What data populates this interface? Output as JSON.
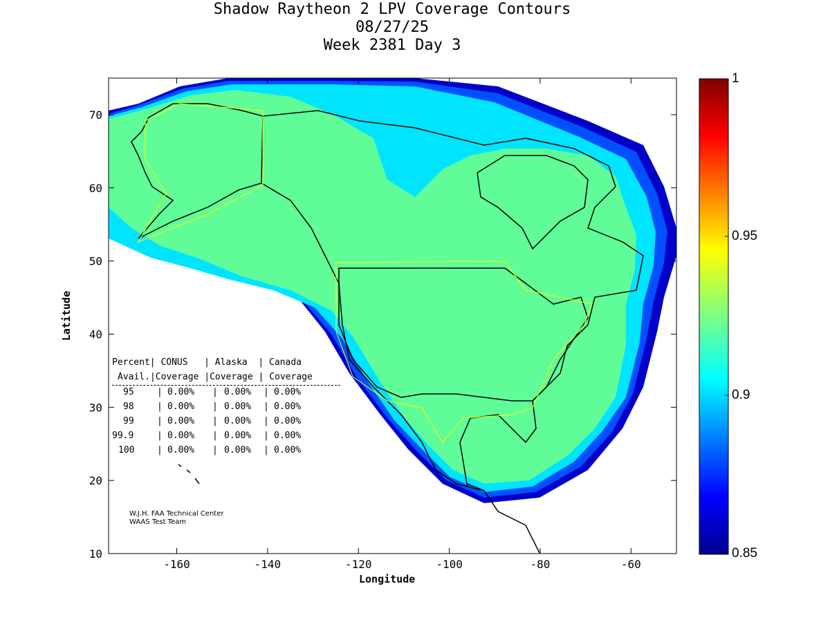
{
  "title": {
    "line1": "Shadow Raytheon 2 LPV Coverage Contours",
    "line2": "08/27/25",
    "line3": "Week 2381 Day 3"
  },
  "axes": {
    "xlabel": "Longitude",
    "ylabel": "Latitude",
    "x_ticks": [
      -160,
      -140,
      -120,
      -100,
      -80,
      -60
    ],
    "y_ticks": [
      10,
      20,
      30,
      40,
      50,
      60,
      70
    ],
    "x_range": [
      -175,
      -50
    ],
    "y_range": [
      10,
      75
    ]
  },
  "colorbar": {
    "min_label": "0.85",
    "max_label": "1",
    "ticks": [
      "0.95",
      "0.9"
    ],
    "colors": [
      "#7f0000",
      "#ff0000",
      "#ffff00",
      "#00ffff",
      "#0000ff",
      "#00008f"
    ]
  },
  "stats_table": {
    "header1": [
      "Percent",
      "CONUS",
      "Alaska",
      "Canada"
    ],
    "header2": [
      "Avail.",
      "Coverage",
      "Coverage",
      "Coverage"
    ],
    "rows": [
      {
        "pct": "95",
        "conus": "0.00%",
        "alaska": "0.00%",
        "canada": "0.00%"
      },
      {
        "pct": "98",
        "conus": "0.00%",
        "alaska": "0.00%",
        "canada": "0.00%"
      },
      {
        "pct": "99",
        "conus": "0.00%",
        "alaska": "0.00%",
        "canada": "0.00%"
      },
      {
        "pct": "99.9",
        "conus": "0.00%",
        "alaska": "0.00%",
        "canada": "0.00%"
      },
      {
        "pct": "100",
        "conus": "0.00%",
        "alaska": "0.00%",
        "canada": "0.00%"
      }
    ]
  },
  "credit": {
    "line1": "W.J.H. FAA Technical Center",
    "line2": "WAAS Test Team"
  },
  "colors": {
    "coverage_main": "#5ffc98",
    "coverage_cyan": "#00e4ff",
    "coverage_blue": "#0050ff",
    "coverage_dark": "#0000c8",
    "region_outline": "#ffff00"
  }
}
